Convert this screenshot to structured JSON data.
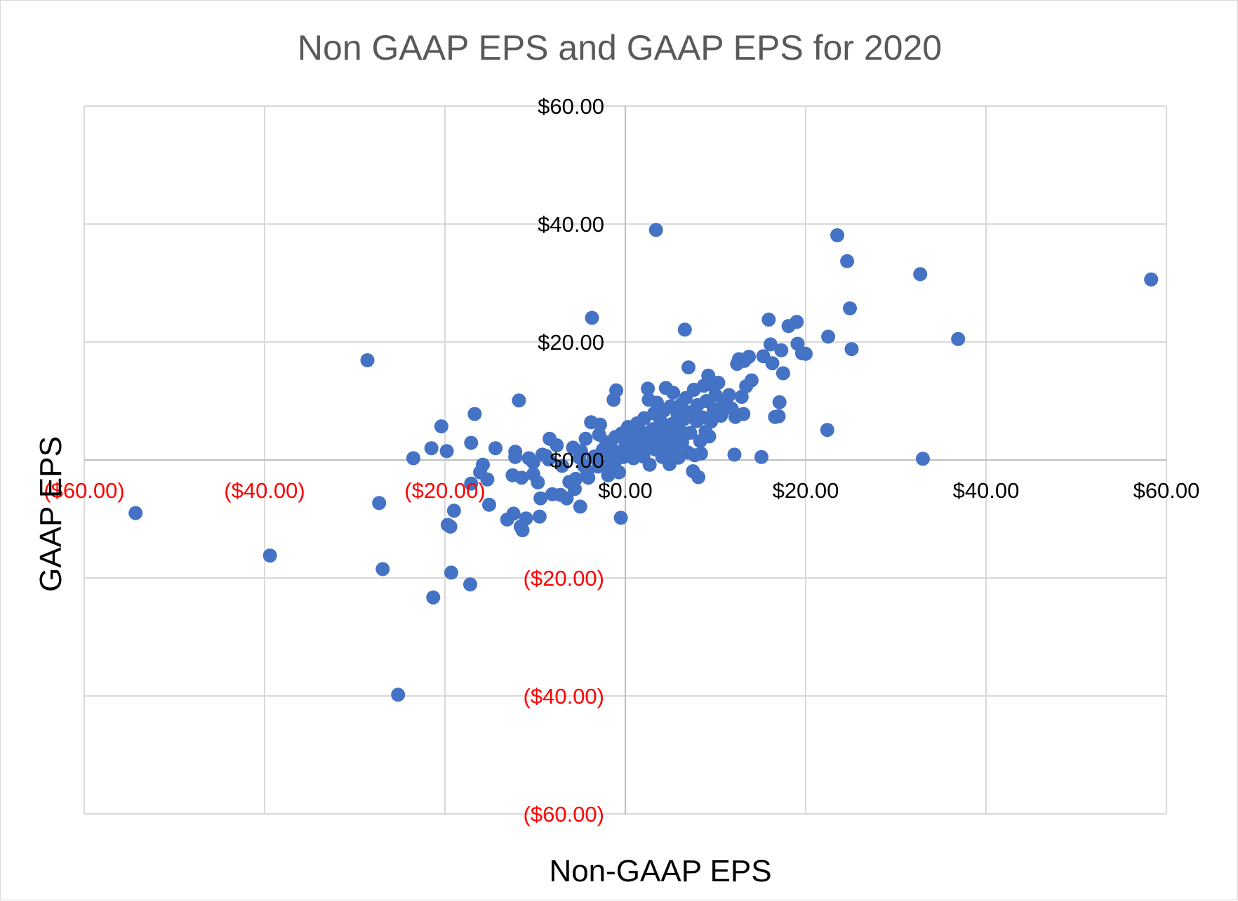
{
  "chart_data": {
    "type": "scatter",
    "title": "Non GAAP EPS and GAAP EPS for 2020",
    "xlabel": "Non-GAAP EPS",
    "ylabel": "GAAP EPS",
    "xlim": [
      -60,
      60
    ],
    "ylim": [
      -60,
      60
    ],
    "x_ticks": [
      {
        "value": -60,
        "label": "($60.00)",
        "negative": true
      },
      {
        "value": -40,
        "label": "($40.00)",
        "negative": true
      },
      {
        "value": -20,
        "label": "($20.00)",
        "negative": true
      },
      {
        "value": 0,
        "label": "$0.00",
        "negative": false
      },
      {
        "value": 20,
        "label": "$20.00",
        "negative": false
      },
      {
        "value": 40,
        "label": "$40.00",
        "negative": false
      },
      {
        "value": 60,
        "label": "$60.00",
        "negative": false
      }
    ],
    "y_ticks": [
      {
        "value": 60,
        "label": "$60.00",
        "negative": false
      },
      {
        "value": 40,
        "label": "$40.00",
        "negative": false
      },
      {
        "value": 20,
        "label": "$20.00",
        "negative": false
      },
      {
        "value": 0,
        "label": "$0.00",
        "negative": false
      },
      {
        "value": -20,
        "label": "($20.00)",
        "negative": true
      },
      {
        "value": -40,
        "label": "($40.00)",
        "negative": true
      },
      {
        "value": -60,
        "label": "($60.00)",
        "negative": true
      }
    ],
    "grid": true,
    "colors": {
      "marker": "#4472C4",
      "negative_label": "#FF0000",
      "positive_label": "#000000"
    },
    "series": [
      {
        "name": "EPS",
        "points": [
          [
            -54.3,
            -9.0
          ],
          [
            -39.4,
            -16.2
          ],
          [
            -28.6,
            16.9
          ],
          [
            -27.3,
            -7.3
          ],
          [
            -26.9,
            -18.5
          ],
          [
            -25.2,
            -39.8
          ],
          [
            -23.5,
            0.3
          ],
          [
            -21.5,
            2.0
          ],
          [
            -21.3,
            -23.3
          ],
          [
            -20.4,
            5.7
          ],
          [
            -19.8,
            1.5
          ],
          [
            -19.7,
            -11.0
          ],
          [
            -19.4,
            -11.3
          ],
          [
            -19.3,
            -19.1
          ],
          [
            -19.0,
            -8.6
          ],
          [
            -17.2,
            -21.1
          ],
          [
            -17.1,
            2.9
          ],
          [
            -17.1,
            -4.0
          ],
          [
            -16.7,
            7.8
          ],
          [
            -16.1,
            -2.1
          ],
          [
            -15.8,
            -0.8
          ],
          [
            -15.3,
            -3.3
          ],
          [
            -15.1,
            -7.6
          ],
          [
            -14.4,
            2.0
          ],
          [
            -13.1,
            -10.1
          ],
          [
            -12.5,
            -2.6
          ],
          [
            -12.4,
            -9.1
          ],
          [
            -12.2,
            1.4
          ],
          [
            -12.2,
            0.5
          ],
          [
            -11.8,
            10.1
          ],
          [
            -11.5,
            -3.0
          ],
          [
            -11.6,
            -11.3
          ],
          [
            -11.4,
            -11.9
          ],
          [
            -11.0,
            -9.9
          ],
          [
            -10.7,
            0.3
          ],
          [
            -10.2,
            -0.4
          ],
          [
            -10.2,
            -2.4
          ],
          [
            -9.7,
            -3.8
          ],
          [
            -9.5,
            -9.6
          ],
          [
            -9.4,
            -6.5
          ],
          [
            -9.2,
            0.9
          ],
          [
            -8.8,
            0.7
          ],
          [
            -8.5,
            0.1
          ],
          [
            -8.4,
            3.6
          ],
          [
            -8.1,
            -5.8
          ],
          [
            -7.6,
            2.5
          ],
          [
            -7.2,
            -5.9
          ],
          [
            -7.0,
            -1.0
          ],
          [
            -6.5,
            -6.5
          ],
          [
            -6.2,
            -3.7
          ],
          [
            -5.8,
            2.1
          ],
          [
            -5.6,
            -4.9
          ],
          [
            -5.5,
            -3.2
          ],
          [
            -5.1,
            0.4
          ],
          [
            -5.0,
            -7.9
          ],
          [
            -4.9,
            1.5
          ],
          [
            -4.6,
            -1.0
          ],
          [
            -4.4,
            3.6
          ],
          [
            -4.2,
            -2.0
          ],
          [
            -4.1,
            -3.0
          ],
          [
            -3.8,
            6.4
          ],
          [
            -3.7,
            24.1
          ],
          [
            -3.5,
            0.5
          ],
          [
            -3.4,
            0.6
          ],
          [
            -3.0,
            -1.1
          ],
          [
            -2.9,
            4.3
          ],
          [
            -2.8,
            6.0
          ],
          [
            -2.5,
            1.7
          ],
          [
            -2.3,
            -1.0
          ],
          [
            -2.1,
            3.0
          ],
          [
            -1.9,
            -2.6
          ],
          [
            -1.8,
            1.1
          ],
          [
            -1.6,
            2.2
          ],
          [
            -1.5,
            0.2
          ],
          [
            -1.3,
            10.2
          ],
          [
            -1.2,
            -0.5
          ],
          [
            -1.1,
            3.9
          ],
          [
            -1.0,
            11.8
          ],
          [
            -0.9,
            1.2
          ],
          [
            -0.7,
            -2.1
          ],
          [
            -0.5,
            -9.8
          ],
          [
            -0.4,
            4.5
          ],
          [
            -0.2,
            0.5
          ],
          [
            0.0,
            2.3
          ],
          [
            0.2,
            1.4
          ],
          [
            0.3,
            5.6
          ],
          [
            0.5,
            3.6
          ],
          [
            0.7,
            1.2
          ],
          [
            0.9,
            0.3
          ],
          [
            1.0,
            4.3
          ],
          [
            1.2,
            2.3
          ],
          [
            1.3,
            6.2
          ],
          [
            1.5,
            1.0
          ],
          [
            1.6,
            5.0
          ],
          [
            1.8,
            3.5
          ],
          [
            2.0,
            0.6
          ],
          [
            2.1,
            7.1
          ],
          [
            2.3,
            4.3
          ],
          [
            2.4,
            2.5
          ],
          [
            2.5,
            12.1
          ],
          [
            2.6,
            10.2
          ],
          [
            2.7,
            -0.8
          ],
          [
            2.9,
            3.0
          ],
          [
            3.0,
            5.2
          ],
          [
            3.2,
            7.9
          ],
          [
            3.3,
            1.8
          ],
          [
            3.4,
            39.0
          ],
          [
            3.5,
            9.7
          ],
          [
            3.7,
            4.5
          ],
          [
            3.9,
            6.6
          ],
          [
            4.0,
            2.8
          ],
          [
            4.1,
            0.5
          ],
          [
            4.3,
            8.4
          ],
          [
            4.4,
            5.2
          ],
          [
            4.5,
            12.2
          ],
          [
            4.6,
            3.7
          ],
          [
            4.8,
            1.2
          ],
          [
            4.9,
            -0.7
          ],
          [
            5.0,
            9.1
          ],
          [
            5.2,
            6.1
          ],
          [
            5.3,
            11.4
          ],
          [
            5.5,
            2.3
          ],
          [
            5.6,
            4.4
          ],
          [
            5.8,
            7.7
          ],
          [
            5.9,
            0.4
          ],
          [
            6.0,
            5.1
          ],
          [
            6.2,
            9.4
          ],
          [
            6.3,
            3.0
          ],
          [
            6.5,
            6.9
          ],
          [
            6.6,
            22.1
          ],
          [
            6.7,
            10.5
          ],
          [
            6.9,
            1.3
          ],
          [
            7.0,
            15.7
          ],
          [
            7.2,
            4.6
          ],
          [
            7.3,
            8.1
          ],
          [
            7.5,
            -1.9
          ],
          [
            7.6,
            11.9
          ],
          [
            7.7,
            0.8
          ],
          [
            7.9,
            6.6
          ],
          [
            8.0,
            9.3
          ],
          [
            8.1,
            -2.9
          ],
          [
            8.3,
            3.2
          ],
          [
            8.4,
            1.1
          ],
          [
            8.6,
            7.2
          ],
          [
            8.7,
            12.6
          ],
          [
            8.9,
            4.8
          ],
          [
            9.0,
            10.0
          ],
          [
            9.2,
            14.3
          ],
          [
            9.3,
            4.0
          ],
          [
            9.5,
            6.5
          ],
          [
            9.6,
            12.7
          ],
          [
            9.8,
            8.6
          ],
          [
            10.0,
            11.0
          ],
          [
            10.3,
            13.1
          ],
          [
            10.6,
            7.5
          ],
          [
            10.9,
            9.7
          ],
          [
            11.2,
            10.1
          ],
          [
            11.5,
            11.0
          ],
          [
            11.8,
            8.7
          ],
          [
            12.1,
            0.9
          ],
          [
            12.2,
            7.3
          ],
          [
            12.4,
            16.3
          ],
          [
            12.6,
            17.1
          ],
          [
            12.9,
            10.7
          ],
          [
            13.1,
            7.8
          ],
          [
            13.2,
            16.8
          ],
          [
            13.4,
            12.5
          ],
          [
            13.7,
            17.5
          ],
          [
            14.0,
            13.5
          ],
          [
            15.1,
            0.5
          ],
          [
            15.3,
            17.6
          ],
          [
            15.9,
            23.8
          ],
          [
            16.1,
            19.6
          ],
          [
            16.3,
            16.4
          ],
          [
            16.6,
            7.3
          ],
          [
            17.0,
            7.4
          ],
          [
            17.1,
            9.8
          ],
          [
            17.3,
            18.6
          ],
          [
            17.5,
            14.7
          ],
          [
            18.1,
            22.7
          ],
          [
            19.0,
            23.4
          ],
          [
            19.1,
            19.7
          ],
          [
            19.6,
            18.1
          ],
          [
            20.0,
            18.0
          ],
          [
            22.4,
            5.1
          ],
          [
            22.5,
            20.9
          ],
          [
            23.5,
            38.1
          ],
          [
            24.6,
            33.7
          ],
          [
            24.9,
            25.7
          ],
          [
            25.1,
            18.8
          ],
          [
            32.7,
            31.5
          ],
          [
            33.0,
            0.2
          ],
          [
            36.9,
            20.5
          ],
          [
            58.3,
            30.6
          ]
        ]
      }
    ]
  }
}
